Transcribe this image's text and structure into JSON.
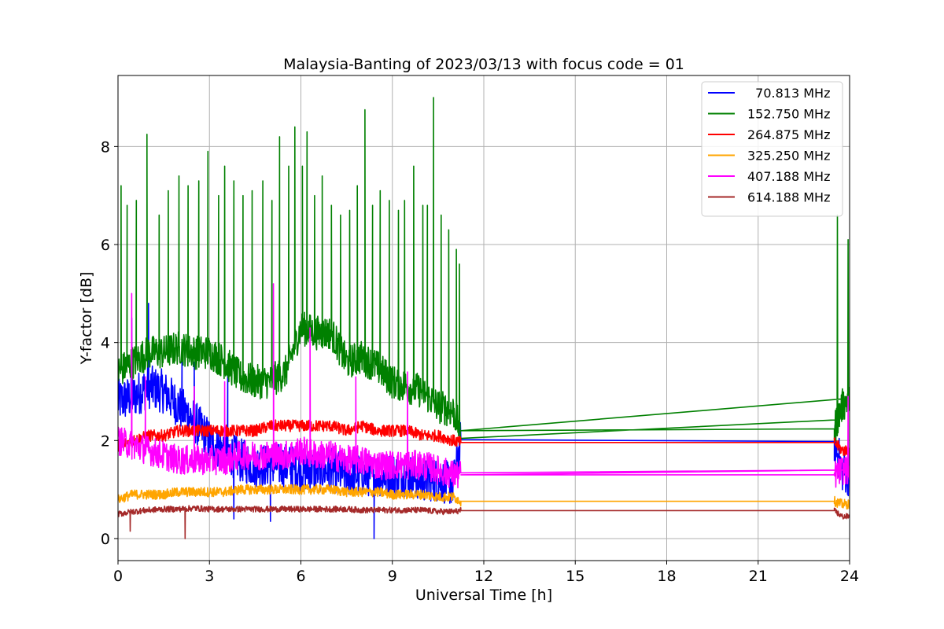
{
  "chart_data": {
    "type": "line",
    "title": "Malaysia-Banting of 2023/03/13 with focus code = 01",
    "xlabel": "Universal Time [h]",
    "ylabel": "Y-factor [dB]",
    "xlim": [
      0,
      24
    ],
    "ylim": [
      -0.45,
      9.45
    ],
    "xticks": [
      0,
      3,
      6,
      9,
      12,
      15,
      18,
      21,
      24
    ],
    "yticks": [
      0,
      2,
      4,
      6,
      8
    ],
    "grid": true,
    "legend_position": "top-right",
    "data_gap": [
      11.25,
      23.5
    ],
    "series": [
      {
        "name": "  70.813 MHz",
        "color": "#0000ff",
        "baseline": 2.0,
        "noise": 0.45,
        "x": [
          0.0,
          0.5,
          1.0,
          1.5,
          2.0,
          2.5,
          3.0,
          3.5,
          4.0,
          4.5,
          5.0,
          5.5,
          6.0,
          6.5,
          7.0,
          7.5,
          8.0,
          8.5,
          9.0,
          9.5,
          10.0,
          10.5,
          11.0,
          11.25,
          23.5,
          23.75,
          24.0
        ],
        "y": [
          2.8,
          2.9,
          3.1,
          3.0,
          2.7,
          2.4,
          2.0,
          1.8,
          1.6,
          1.5,
          1.5,
          1.5,
          1.4,
          1.4,
          1.4,
          1.3,
          1.3,
          1.3,
          1.3,
          1.3,
          1.2,
          1.2,
          1.1,
          2.02,
          1.98,
          1.4,
          1.3
        ],
        "peaks": [
          {
            "x": 0.45,
            "y": 4.5
          },
          {
            "x": 1.0,
            "y": 4.8
          },
          {
            "x": 2.1,
            "y": 3.8
          },
          {
            "x": 2.5,
            "y": 3.6
          },
          {
            "x": 3.6,
            "y": 3.4
          },
          {
            "x": 8.4,
            "y": 0.0
          },
          {
            "x": 5.0,
            "y": 0.35
          },
          {
            "x": 3.8,
            "y": 0.4
          }
        ]
      },
      {
        "name": "152.750 MHz",
        "color": "#008000",
        "baseline": 3.6,
        "noise": 0.35,
        "x": [
          0.0,
          0.5,
          1.0,
          1.5,
          2.0,
          2.5,
          3.0,
          3.5,
          4.0,
          4.5,
          5.0,
          5.5,
          6.0,
          6.5,
          7.0,
          7.5,
          8.0,
          8.5,
          9.0,
          9.5,
          10.0,
          10.5,
          11.0,
          11.25,
          23.5,
          23.75,
          24.0
        ],
        "y": [
          3.4,
          3.6,
          3.8,
          3.8,
          3.9,
          3.8,
          3.8,
          3.6,
          3.3,
          3.2,
          3.2,
          3.4,
          4.3,
          4.2,
          4.2,
          3.6,
          3.7,
          3.5,
          3.2,
          3.1,
          3.0,
          2.7,
          2.6,
          2.2,
          2.24,
          2.7,
          2.9
        ],
        "peaks": [
          {
            "x": 0.1,
            "y": 7.2
          },
          {
            "x": 0.3,
            "y": 6.8
          },
          {
            "x": 0.6,
            "y": 6.9
          },
          {
            "x": 0.95,
            "y": 8.25
          },
          {
            "x": 1.35,
            "y": 6.6
          },
          {
            "x": 1.65,
            "y": 7.1
          },
          {
            "x": 2.0,
            "y": 7.4
          },
          {
            "x": 2.3,
            "y": 7.2
          },
          {
            "x": 2.65,
            "y": 7.3
          },
          {
            "x": 2.95,
            "y": 7.9
          },
          {
            "x": 3.3,
            "y": 7.0
          },
          {
            "x": 3.5,
            "y": 7.6
          },
          {
            "x": 3.8,
            "y": 7.3
          },
          {
            "x": 4.1,
            "y": 7.0
          },
          {
            "x": 4.4,
            "y": 7.1
          },
          {
            "x": 4.75,
            "y": 7.3
          },
          {
            "x": 5.05,
            "y": 6.9
          },
          {
            "x": 5.3,
            "y": 8.2
          },
          {
            "x": 5.6,
            "y": 7.6
          },
          {
            "x": 5.8,
            "y": 8.4
          },
          {
            "x": 6.05,
            "y": 7.6
          },
          {
            "x": 6.2,
            "y": 8.3
          },
          {
            "x": 6.45,
            "y": 7.0
          },
          {
            "x": 6.7,
            "y": 7.4
          },
          {
            "x": 7.0,
            "y": 6.8
          },
          {
            "x": 7.3,
            "y": 6.6
          },
          {
            "x": 7.6,
            "y": 6.7
          },
          {
            "x": 7.85,
            "y": 7.2
          },
          {
            "x": 8.1,
            "y": 8.75
          },
          {
            "x": 8.35,
            "y": 6.8
          },
          {
            "x": 8.6,
            "y": 7.1
          },
          {
            "x": 8.9,
            "y": 6.9
          },
          {
            "x": 9.2,
            "y": 6.7
          },
          {
            "x": 9.4,
            "y": 6.9
          },
          {
            "x": 9.7,
            "y": 7.6
          },
          {
            "x": 10.0,
            "y": 6.8
          },
          {
            "x": 10.15,
            "y": 6.8
          },
          {
            "x": 10.35,
            "y": 9.0
          },
          {
            "x": 10.6,
            "y": 6.6
          },
          {
            "x": 10.85,
            "y": 6.3
          },
          {
            "x": 11.1,
            "y": 5.9
          },
          {
            "x": 11.2,
            "y": 5.6
          },
          {
            "x": 23.6,
            "y": 6.6
          },
          {
            "x": 23.95,
            "y": 6.1
          }
        ]
      },
      {
        "name": "264.875 MHz",
        "color": "#ff0000",
        "baseline": 2.2,
        "noise": 0.12,
        "x": [
          0.0,
          0.5,
          1.0,
          1.5,
          2.0,
          2.5,
          3.0,
          3.5,
          4.0,
          4.5,
          5.0,
          5.5,
          6.0,
          6.5,
          7.0,
          7.5,
          8.0,
          8.5,
          9.0,
          9.5,
          10.0,
          10.5,
          11.0,
          11.25,
          23.5,
          23.75,
          24.0
        ],
        "y": [
          1.9,
          2.0,
          2.1,
          2.1,
          2.2,
          2.2,
          2.2,
          2.2,
          2.2,
          2.2,
          2.3,
          2.3,
          2.3,
          2.3,
          2.3,
          2.2,
          2.3,
          2.2,
          2.2,
          2.2,
          2.1,
          2.1,
          2.0,
          1.96,
          1.96,
          1.8,
          1.8
        ],
        "peaks": []
      },
      {
        "name": "325.250 MHz",
        "color": "#ffa500",
        "baseline": 0.9,
        "noise": 0.1,
        "x": [
          0.0,
          0.5,
          1.0,
          1.5,
          2.0,
          2.5,
          3.0,
          3.5,
          4.0,
          4.5,
          5.0,
          5.5,
          6.0,
          6.5,
          7.0,
          7.5,
          8.0,
          8.5,
          9.0,
          9.5,
          10.0,
          10.5,
          11.0,
          11.25,
          23.5,
          23.75,
          24.0
        ],
        "y": [
          0.8,
          0.9,
          0.9,
          0.9,
          0.95,
          0.95,
          0.95,
          0.95,
          1.0,
          1.0,
          1.0,
          1.0,
          1.0,
          1.0,
          1.0,
          0.95,
          0.95,
          0.95,
          0.9,
          0.9,
          0.9,
          0.85,
          0.85,
          0.76,
          0.76,
          0.7,
          0.7
        ],
        "peaks": []
      },
      {
        "name": "407.188 MHz",
        "color": "#ff00ff",
        "baseline": 1.7,
        "noise": 0.3,
        "x": [
          0.0,
          0.5,
          1.0,
          1.5,
          2.0,
          2.5,
          3.0,
          3.5,
          4.0,
          4.5,
          5.0,
          5.5,
          6.0,
          6.5,
          7.0,
          7.5,
          8.0,
          8.5,
          9.0,
          9.5,
          10.0,
          10.5,
          11.0,
          11.25,
          23.5,
          23.75,
          24.0
        ],
        "y": [
          2.0,
          1.9,
          1.8,
          1.7,
          1.6,
          1.6,
          1.6,
          1.6,
          1.7,
          1.7,
          1.7,
          1.7,
          1.8,
          1.7,
          1.7,
          1.6,
          1.6,
          1.5,
          1.5,
          1.5,
          1.5,
          1.4,
          1.3,
          1.3,
          1.3,
          1.4,
          1.4
        ],
        "peaks": [
          {
            "x": 0.45,
            "y": 5.0
          },
          {
            "x": 5.1,
            "y": 5.2
          },
          {
            "x": 6.3,
            "y": 4.3
          },
          {
            "x": 0.9,
            "y": 3.3
          },
          {
            "x": 2.5,
            "y": 3.1
          },
          {
            "x": 3.5,
            "y": 3.2
          },
          {
            "x": 7.8,
            "y": 3.3
          },
          {
            "x": 9.5,
            "y": 3.4
          },
          {
            "x": 23.95,
            "y": 2.9
          }
        ]
      },
      {
        "name": "614.188 MHz",
        "color": "#a52a2a",
        "baseline": 0.58,
        "noise": 0.06,
        "x": [
          0.0,
          0.5,
          1.0,
          1.5,
          2.0,
          2.5,
          3.0,
          3.5,
          4.0,
          4.5,
          5.0,
          5.5,
          6.0,
          6.5,
          7.0,
          7.5,
          8.0,
          8.5,
          9.0,
          9.5,
          10.0,
          10.5,
          11.0,
          11.25,
          23.5,
          23.75,
          24.0
        ],
        "y": [
          0.5,
          0.55,
          0.58,
          0.6,
          0.6,
          0.62,
          0.6,
          0.6,
          0.6,
          0.6,
          0.6,
          0.6,
          0.6,
          0.6,
          0.6,
          0.6,
          0.58,
          0.58,
          0.58,
          0.58,
          0.58,
          0.55,
          0.55,
          0.57,
          0.57,
          0.45,
          0.45
        ],
        "peaks": [
          {
            "x": 2.2,
            "y": 0.0
          },
          {
            "x": 0.4,
            "y": 0.15
          }
        ]
      }
    ]
  }
}
